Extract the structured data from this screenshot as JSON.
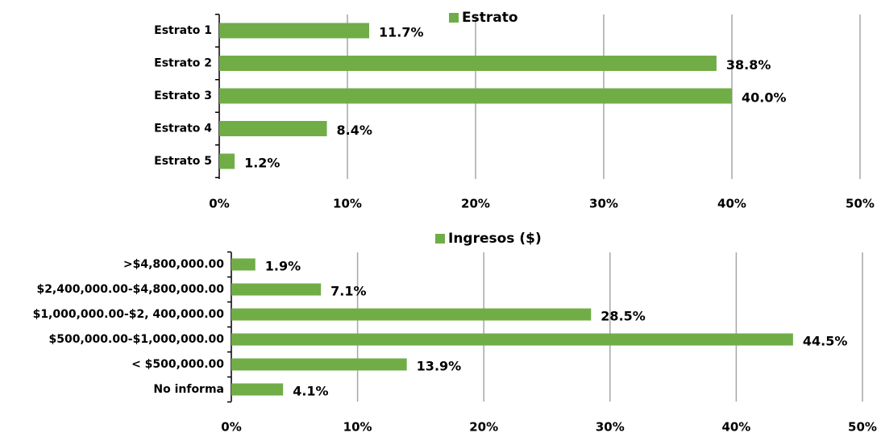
{
  "chart_data": [
    {
      "type": "bar",
      "orientation": "horizontal",
      "categories": [
        "Estrato 1",
        "Estrato 2",
        "Estrato 3",
        "Estrato 4",
        "Estrato 5"
      ],
      "series": [
        {
          "name": "Estrato",
          "color": "#70ad47",
          "values": [
            11.7,
            38.8,
            40.0,
            8.4,
            1.2
          ],
          "value_labels": [
            "11.7%",
            "38.8%",
            "40.0%",
            "8.4%",
            "1.2%"
          ]
        }
      ],
      "xlim": [
        0,
        50
      ],
      "xticks": [
        {
          "value": 0,
          "label": "0%"
        },
        {
          "value": 10,
          "label": "10%"
        },
        {
          "value": 20,
          "label": "20%"
        },
        {
          "value": 30,
          "label": "30%"
        },
        {
          "value": 40,
          "label": "40%"
        },
        {
          "value": 50,
          "label": "50%"
        }
      ],
      "grid": true,
      "legend": "top"
    },
    {
      "type": "bar",
      "orientation": "horizontal",
      "categories": [
        ">$4,800,000.00",
        "$2,400,000.00-$4,800,000.00",
        "$1,000,000.00-$2, 400,000.00",
        "$500,000.00-$1,000,000.00",
        "< $500,000.00",
        "No informa"
      ],
      "series": [
        {
          "name": "Ingresos ($)",
          "color": "#70ad47",
          "values": [
            1.9,
            7.1,
            28.5,
            44.5,
            13.9,
            4.1
          ],
          "value_labels": [
            "1.9%",
            "7.1%",
            "28.5%",
            "44.5%",
            "13.9%",
            "4.1%"
          ]
        }
      ],
      "xlim": [
        0,
        50
      ],
      "xticks": [
        {
          "value": 0,
          "label": "0%"
        },
        {
          "value": 10,
          "label": "10%"
        },
        {
          "value": 20,
          "label": "20%"
        },
        {
          "value": 30,
          "label": "30%"
        },
        {
          "value": 40,
          "label": "40%"
        },
        {
          "value": 50,
          "label": "50%"
        }
      ],
      "grid": true,
      "legend": "top"
    }
  ]
}
